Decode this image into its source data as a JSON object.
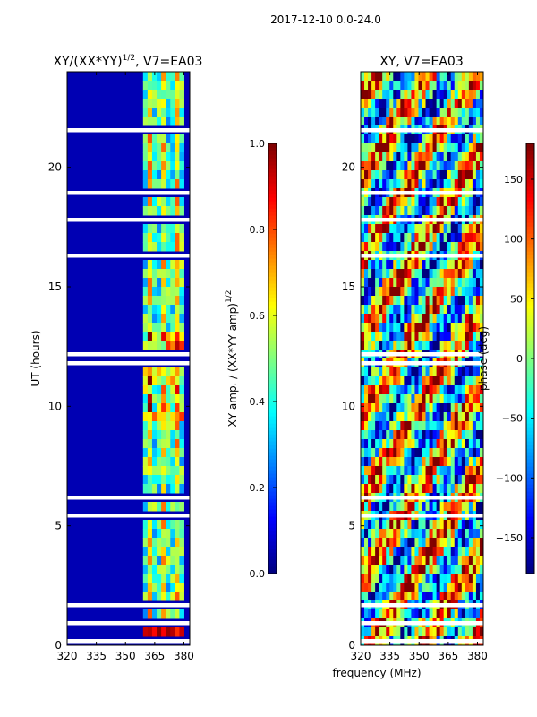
{
  "suptitle": "2017-12-10 0.0-24.0",
  "shared_xlabel": "frequency (MHz)",
  "chart_data": [
    {
      "type": "heatmap",
      "title": "XY/(XX*YY)",
      "title_exponent": "1/2",
      "title_suffix": ", V7=EA03",
      "xlabel": "",
      "ylabel": "UT (hours)",
      "xlim": [
        320,
        383
      ],
      "ylim": [
        0,
        24
      ],
      "xticks": [
        320,
        335,
        350,
        365,
        380
      ],
      "yticks": [
        0,
        5,
        10,
        15,
        20
      ],
      "active_band_mhz": [
        359,
        380
      ],
      "colorbar": {
        "label": "XY amp. / (XX*YY amp)",
        "label_exponent": "1/2",
        "range": [
          0.0,
          1.0
        ],
        "ticks": [
          "0.0",
          "0.2",
          "0.4",
          "0.6",
          "0.8",
          "1.0"
        ],
        "tick_values": [
          0.0,
          0.2,
          0.4,
          0.6,
          0.8,
          1.0
        ]
      }
    },
    {
      "type": "heatmap",
      "title": "XY, V7=EA03",
      "xlabel": "frequency (MHz)",
      "ylabel": "",
      "xlim": [
        320,
        383
      ],
      "ylim": [
        0,
        24
      ],
      "xticks": [
        320,
        335,
        350,
        365,
        380
      ],
      "yticks": [
        0,
        5,
        10,
        15,
        20
      ],
      "colorbar": {
        "label": "phase (deg)",
        "range": [
          -180,
          180
        ],
        "ticks": [
          "−150",
          "−100",
          "−50",
          "0",
          "50",
          "100",
          "150"
        ],
        "tick_values": [
          -150,
          -100,
          -50,
          0,
          50,
          100,
          150
        ]
      }
    }
  ]
}
